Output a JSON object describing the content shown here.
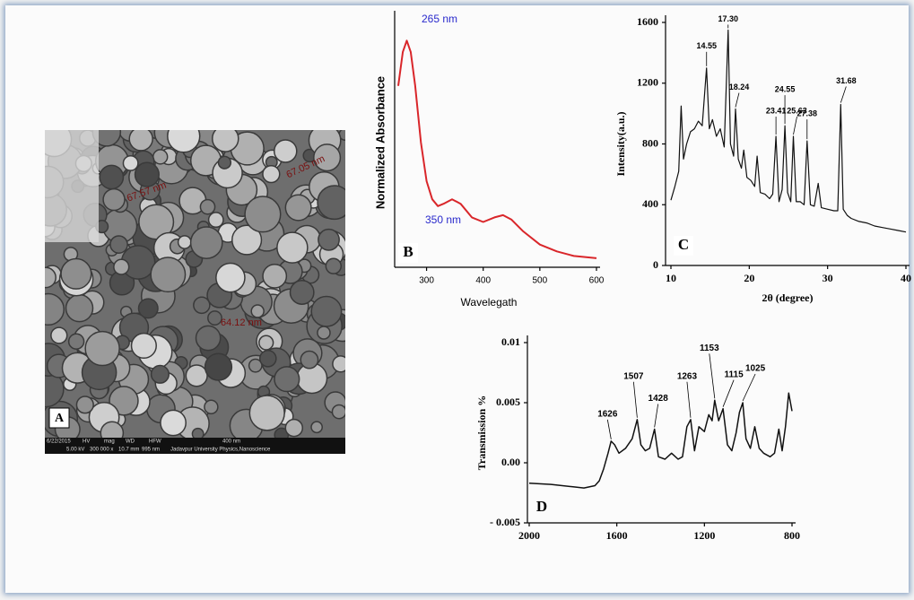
{
  "image_panel": {
    "label": "A",
    "annotations": [
      "67.57 nm",
      "67.05 nm",
      "64.12 nm"
    ],
    "info_bar": [
      "6/22/2015",
      "HV",
      "mag",
      "WD",
      "HFW",
      "400 nm",
      "5.00 kV",
      "300 000 x",
      "10.7 mm",
      "995 nm",
      "Jadavpur University Physics,Nanoscience"
    ]
  },
  "chart_data": [
    {
      "type": "line",
      "label": "B",
      "x_label": "Wavelegath",
      "y_label": "Normalized Absorbance",
      "annotations": [
        "265 nm",
        "350 nm"
      ],
      "xlim": [
        250,
        600
      ],
      "xticks": [
        300,
        400,
        500,
        600
      ],
      "ylim": [
        0,
        1.1
      ],
      "color": "#d9262a",
      "x": [
        250,
        258,
        265,
        272,
        280,
        290,
        300,
        310,
        320,
        330,
        345,
        360,
        380,
        400,
        420,
        435,
        450,
        470,
        500,
        530,
        560,
        600
      ],
      "values": [
        0.8,
        0.95,
        1.0,
        0.95,
        0.8,
        0.55,
        0.38,
        0.3,
        0.27,
        0.28,
        0.3,
        0.28,
        0.22,
        0.2,
        0.22,
        0.23,
        0.21,
        0.16,
        0.1,
        0.07,
        0.05,
        0.04
      ]
    },
    {
      "type": "line",
      "label": "C",
      "x_label": "2θ (degree)",
      "y_label": "Intensity(a.u.)",
      "xlim": [
        10,
        40
      ],
      "xticks": [
        10,
        20,
        30,
        40
      ],
      "ylim": [
        0,
        1600
      ],
      "yticks": [
        0,
        400,
        800,
        1200,
        1600
      ],
      "color": "#111111",
      "peaks": [
        14.55,
        {
          "value": 17.3,
          "label": "17.30"
        },
        18.24,
        23.41,
        24.55,
        25.63,
        27.38,
        31.68
      ],
      "peak_intensities": [
        1300,
        1550,
        1030,
        850,
        920,
        850,
        820,
        1060
      ],
      "x": [
        10,
        10.5,
        11,
        11.3,
        11.6,
        12,
        12.5,
        13,
        13.5,
        14,
        14.55,
        14.9,
        15.3,
        15.8,
        16.3,
        16.8,
        17.3,
        17.6,
        18,
        18.24,
        18.6,
        19,
        19.3,
        19.7,
        20.2,
        20.7,
        21,
        21.4,
        22,
        22.6,
        23,
        23.41,
        23.8,
        24.2,
        24.55,
        24.9,
        25.3,
        25.63,
        26,
        26.5,
        27,
        27.38,
        27.8,
        28.3,
        28.8,
        29.2,
        30,
        30.8,
        31.3,
        31.68,
        32,
        32.5,
        33,
        34,
        35,
        36,
        37,
        38,
        39,
        40
      ],
      "values": [
        430,
        520,
        620,
        1050,
        700,
        800,
        880,
        900,
        950,
        920,
        1300,
        900,
        960,
        850,
        900,
        780,
        1550,
        800,
        720,
        1030,
        700,
        640,
        760,
        580,
        560,
        520,
        720,
        480,
        470,
        440,
        470,
        850,
        420,
        500,
        920,
        480,
        420,
        850,
        420,
        420,
        400,
        820,
        400,
        390,
        540,
        380,
        370,
        360,
        360,
        1060,
        370,
        330,
        310,
        290,
        280,
        260,
        250,
        240,
        230,
        220
      ]
    },
    {
      "type": "line",
      "label": "D",
      "y_label": "Transmission %",
      "xlim": [
        2000,
        800
      ],
      "xticks": [
        2000,
        1600,
        1200,
        800
      ],
      "ylim": [
        -0.005,
        0.01
      ],
      "yticks": [
        {
          "value": -0.005,
          "label": "- 0.005"
        },
        {
          "value": 0,
          "label": "0.00"
        },
        0.005,
        0.01
      ],
      "color": "#111111",
      "peaks": [
        1626,
        1507,
        1428,
        1263,
        1153,
        1115,
        1025
      ],
      "peak_intensities": [
        0.0018,
        0.0036,
        0.0028,
        0.0036,
        0.0052,
        0.0045,
        0.005
      ],
      "x": [
        2000,
        1900,
        1800,
        1750,
        1700,
        1680,
        1660,
        1640,
        1626,
        1610,
        1590,
        1560,
        1530,
        1507,
        1490,
        1470,
        1450,
        1428,
        1410,
        1380,
        1350,
        1320,
        1300,
        1280,
        1263,
        1245,
        1225,
        1200,
        1180,
        1165,
        1153,
        1135,
        1115,
        1095,
        1075,
        1055,
        1040,
        1025,
        1010,
        990,
        970,
        950,
        930,
        900,
        880,
        860,
        845,
        830,
        815,
        800
      ],
      "values": [
        -0.0017,
        -0.0018,
        -0.002,
        -0.0021,
        -0.0019,
        -0.0015,
        -0.0005,
        0.0008,
        0.0018,
        0.0015,
        0.0008,
        0.0012,
        0.002,
        0.0036,
        0.0015,
        0.001,
        0.0012,
        0.0028,
        0.0005,
        0.0003,
        0.0008,
        0.0003,
        0.0005,
        0.003,
        0.0036,
        0.001,
        0.003,
        0.0026,
        0.004,
        0.0035,
        0.0052,
        0.0035,
        0.0045,
        0.0015,
        0.001,
        0.0025,
        0.0042,
        0.005,
        0.002,
        0.0012,
        0.003,
        0.0012,
        0.0008,
        0.0005,
        0.0008,
        0.0028,
        0.001,
        0.003,
        0.0058,
        0.0043
      ]
    }
  ]
}
